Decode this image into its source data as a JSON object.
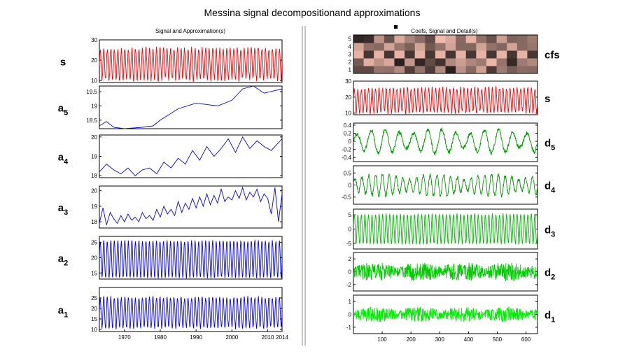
{
  "title": "Messina signal decompositionand approximations",
  "left_panel_title": "Signal and Approximation(s)",
  "right_panel_title": "Coefs, Signal and Detail(s)",
  "colors": {
    "signal": "#ff0000",
    "approx": "#0000ff",
    "detail_dark": "#009900",
    "detail_light": "#00ee00"
  },
  "chart_data": [
    {
      "type": "line",
      "panel": "left",
      "title": "Signal and Approximation(s)",
      "x_range": [
        1963,
        2014
      ],
      "x_ticks": [
        1970,
        1980,
        1990,
        2000,
        2010,
        2014
      ],
      "rows": [
        {
          "label": "s",
          "sub": "",
          "color": "#ff0000",
          "kind": "osc",
          "ylim": [
            9,
            30
          ],
          "yticks": [
            10,
            20,
            30
          ],
          "mid": 18,
          "amp": 7.5,
          "cycles": 52,
          "noise": 1.2
        },
        {
          "label": "a",
          "sub": "5",
          "color": "#0000ff",
          "kind": "smooth",
          "ylim": [
            18.2,
            19.7
          ],
          "yticks": [
            18.5,
            19,
            19.5
          ],
          "x": [
            1963,
            1965,
            1967,
            1970,
            1975,
            1978,
            1980,
            1985,
            1990,
            1993,
            1996,
            2000,
            2003,
            2006,
            2009,
            2014
          ],
          "y": [
            18.3,
            18.45,
            18.25,
            18.2,
            18.25,
            18.3,
            18.5,
            18.9,
            19.1,
            19.05,
            19.0,
            19.2,
            19.6,
            19.7,
            19.45,
            19.6
          ]
        },
        {
          "label": "a",
          "sub": "4",
          "color": "#0000ff",
          "kind": "smooth",
          "ylim": [
            17.9,
            20.1
          ],
          "yticks": [
            18,
            19,
            20
          ],
          "x": [
            1963,
            1965,
            1967,
            1969,
            1971,
            1973,
            1975,
            1977,
            1979,
            1981,
            1983,
            1985,
            1987,
            1989,
            1991,
            1993,
            1995,
            1997,
            1999,
            2001,
            2003,
            2005,
            2007,
            2009,
            2011,
            2014
          ],
          "y": [
            18.2,
            18.6,
            18.3,
            18.1,
            18.4,
            18.0,
            18.3,
            18.4,
            18.1,
            18.7,
            18.4,
            18.9,
            18.6,
            19.3,
            18.8,
            19.5,
            19.0,
            19.4,
            19.9,
            19.2,
            20.0,
            19.4,
            19.8,
            19.5,
            19.3,
            19.9
          ]
        },
        {
          "label": "a",
          "sub": "3",
          "color": "#0000ff",
          "kind": "smooth",
          "ylim": [
            17.6,
            20.3
          ],
          "yticks": [
            18,
            19,
            20
          ],
          "x": [
            1963,
            1964,
            1965,
            1966,
            1967,
            1968,
            1969,
            1970,
            1971,
            1972,
            1973,
            1974,
            1975,
            1976,
            1977,
            1978,
            1979,
            1980,
            1981,
            1982,
            1983,
            1984,
            1985,
            1986,
            1987,
            1988,
            1989,
            1990,
            1991,
            1992,
            1993,
            1994,
            1995,
            1996,
            1997,
            1998,
            1999,
            2000,
            2001,
            2002,
            2003,
            2004,
            2005,
            2006,
            2007,
            2008,
            2009,
            2010,
            2011,
            2012,
            2013,
            2014
          ],
          "y": [
            17.9,
            18.9,
            17.8,
            18.6,
            18.2,
            17.9,
            18.4,
            18.0,
            18.5,
            18.1,
            18.3,
            18.0,
            18.6,
            18.2,
            18.4,
            18.1,
            18.8,
            18.3,
            19.0,
            18.5,
            18.8,
            18.4,
            19.3,
            18.6,
            19.2,
            18.8,
            19.5,
            18.9,
            19.6,
            19.0,
            19.8,
            19.1,
            19.7,
            19.2,
            20.1,
            19.3,
            19.6,
            19.4,
            20.0,
            19.5,
            20.2,
            19.4,
            19.9,
            19.6,
            20.1,
            19.3,
            19.8,
            19.5,
            18.5,
            20.2,
            18.0,
            19.8
          ]
        },
        {
          "label": "a",
          "sub": "2",
          "color": "#0000ff",
          "kind": "osc",
          "ylim": [
            13,
            27
          ],
          "yticks": [
            15,
            20,
            25
          ],
          "mid": 19.5,
          "amp": 6,
          "cycles": 52,
          "noise": 0.3
        },
        {
          "label": "a",
          "sub": "1",
          "color": "#0000ff",
          "kind": "osc",
          "ylim": [
            9,
            30
          ],
          "yticks": [
            10,
            15,
            20,
            25
          ],
          "mid": 18,
          "amp": 7.2,
          "cycles": 52,
          "noise": 0.8
        }
      ]
    },
    {
      "type": "line",
      "panel": "right",
      "title": "Coefs, Signal and Detail(s)",
      "x_range": [
        0,
        640
      ],
      "x_ticks": [
        100,
        200,
        300,
        400,
        500,
        600
      ],
      "rows": [
        {
          "label": "cfs",
          "sub": "",
          "kind": "heatmap",
          "ylim": [
            0.5,
            5.5
          ],
          "yticks": [
            1,
            2,
            3,
            4,
            5
          ]
        },
        {
          "label": "s",
          "sub": "",
          "color": "#ff0000",
          "kind": "osc",
          "ylim": [
            9,
            30
          ],
          "yticks": [
            10,
            20,
            30
          ],
          "mid": 18,
          "amp": 7.5,
          "cycles": 52,
          "noise": 1.2
        },
        {
          "label": "d",
          "sub": "5",
          "color": "#009900",
          "kind": "osc",
          "ylim": [
            -0.5,
            0.45
          ],
          "yticks": [
            -0.4,
            -0.2,
            0,
            0.2,
            0.4
          ],
          "mid": 0,
          "amp": 0.3,
          "cycles": 13,
          "noise": 0.05,
          "mod": 0.5
        },
        {
          "label": "d",
          "sub": "4",
          "color": "#009900",
          "kind": "osc",
          "ylim": [
            -0.8,
            0.8
          ],
          "yticks": [
            -0.5,
            0,
            0.5
          ],
          "mid": 0,
          "amp": 0.45,
          "cycles": 27,
          "noise": 0.08,
          "mod": 0.5
        },
        {
          "label": "d",
          "sub": "3",
          "color": "#00bb00",
          "kind": "osc",
          "ylim": [
            -7,
            7
          ],
          "yticks": [
            -5,
            0,
            5
          ],
          "mid": 0,
          "amp": 5.2,
          "cycles": 52,
          "noise": 0.3
        },
        {
          "label": "d",
          "sub": "2",
          "color": "#00cc00",
          "kind": "noise",
          "ylim": [
            -3,
            3
          ],
          "yticks": [
            -2,
            0,
            2
          ],
          "amp": 1.5
        },
        {
          "label": "d",
          "sub": "1",
          "color": "#00ee00",
          "kind": "noise",
          "ylim": [
            -1.5,
            1.5
          ],
          "yticks": [
            -1,
            0,
            1
          ],
          "amp": 0.6
        }
      ]
    }
  ]
}
